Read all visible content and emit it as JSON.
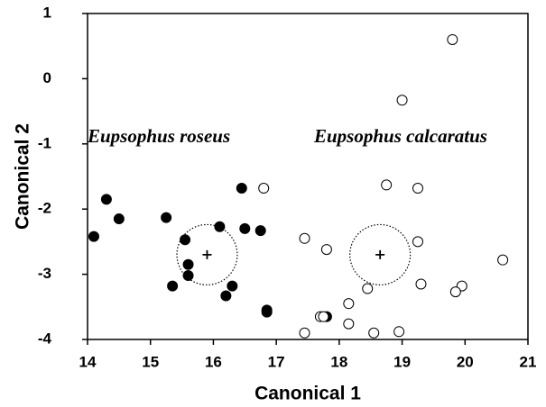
{
  "chart_data": {
    "type": "scatter",
    "xlabel": "Canonical 1",
    "ylabel": "Canonical 2",
    "xlim": [
      14,
      21
    ],
    "xticks": [
      14,
      15,
      16,
      17,
      18,
      19,
      20,
      21
    ],
    "ylim": [
      -4,
      1
    ],
    "yticks": [
      -4,
      -3,
      -2,
      -1,
      0,
      1
    ],
    "grid": false,
    "series": [
      {
        "name": "Eupsophus roseus",
        "color": "#000000",
        "filled": true,
        "centroid": [
          15.9,
          -2.7
        ],
        "circle_radius": 0.48,
        "x": [
          14.1,
          14.3,
          14.5,
          15.25,
          15.55,
          15.6,
          15.6,
          15.35,
          16.1,
          16.2,
          16.3,
          16.45,
          16.5,
          16.75,
          16.85,
          16.85,
          17.8
        ],
        "values": [
          -2.42,
          -1.85,
          -2.15,
          -2.13,
          -2.47,
          -2.85,
          -3.02,
          -3.18,
          -2.27,
          -3.33,
          -3.18,
          -1.68,
          -2.3,
          -2.33,
          -3.55,
          -3.58,
          -3.65
        ]
      },
      {
        "name": "Eupsophus calcaratus",
        "color": "#000000",
        "filled": false,
        "centroid": [
          18.65,
          -2.7
        ],
        "circle_radius": 0.48,
        "x": [
          19.8,
          19.0,
          16.8,
          18.75,
          19.25,
          17.45,
          17.8,
          19.25,
          20.6,
          18.45,
          19.3,
          19.95,
          19.85,
          18.15,
          17.7,
          17.75,
          18.15,
          17.45,
          18.55,
          18.95
        ],
        "values": [
          0.6,
          -0.33,
          -1.68,
          -1.63,
          -1.68,
          -2.45,
          -2.62,
          -2.5,
          -2.78,
          -3.22,
          -3.15,
          -3.18,
          -3.27,
          -3.45,
          -3.65,
          -3.65,
          -3.76,
          -3.9,
          -3.9,
          -3.88
        ]
      }
    ]
  }
}
